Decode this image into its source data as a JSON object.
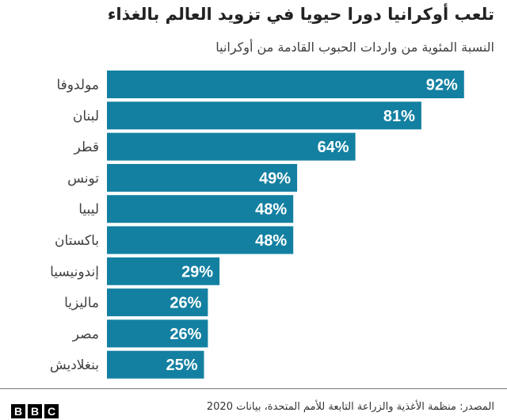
{
  "chart_data": {
    "type": "bar",
    "orientation": "horizontal",
    "title": "تلعب أوكرانيا دورا حيويا في تزويد العالم بالغذاء",
    "subtitle": "النسبة المئوية من واردات الحبوب القادمة من أوكرانيا",
    "categories": [
      "مولدوفا",
      "لبنان",
      "قطر",
      "تونس",
      "ليبيا",
      "باكستان",
      "إندونيسيا",
      "ماليزيا",
      "مصر",
      "بنغلاديش"
    ],
    "values": [
      92,
      81,
      64,
      49,
      48,
      48,
      29,
      26,
      26,
      25
    ],
    "value_labels": [
      "92%",
      "81%",
      "64%",
      "49%",
      "48%",
      "48%",
      "29%",
      "26%",
      "26%",
      "25%"
    ],
    "xlim": [
      0,
      100
    ],
    "grid": false,
    "bar_color": "#1380a1",
    "label_color": "#ffffff"
  },
  "footer": {
    "source": "المصدر: منظمة الأغذية والزراعة التابعة للأمم المتحدة، بيانات 2020",
    "logo_letters": [
      "B",
      "B",
      "C"
    ]
  }
}
